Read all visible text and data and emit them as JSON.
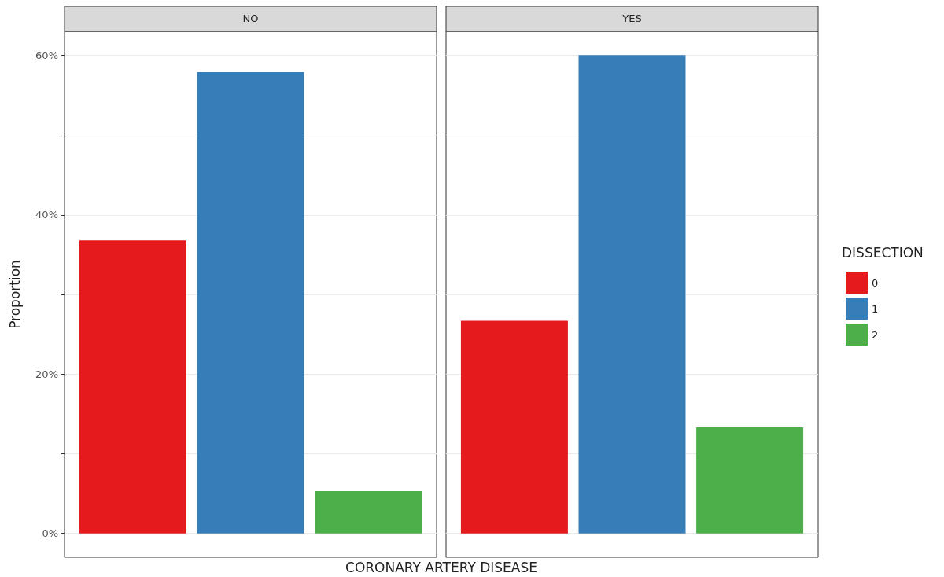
{
  "chart_data": {
    "type": "bar",
    "ylabel": "Proportion",
    "xlabel": "CORONARY ARTERY DISEASE",
    "legend_title": "DISSECTION",
    "categories": [
      "NO",
      "YES"
    ],
    "series": [
      {
        "name": "0",
        "color": "#e41a1c",
        "values": [
          36.8,
          26.7
        ]
      },
      {
        "name": "1",
        "color": "#377eb8",
        "values": [
          57.9,
          60.0
        ]
      },
      {
        "name": "2",
        "color": "#4daf4a",
        "values": [
          5.3,
          13.3
        ]
      }
    ],
    "ylim": [
      -3,
      63
    ],
    "yticks": [
      {
        "value": 0,
        "label": "0%"
      },
      {
        "value": 10,
        "label": null
      },
      {
        "value": 20,
        "label": "20%"
      },
      {
        "value": 30,
        "label": null
      },
      {
        "value": 40,
        "label": "40%"
      },
      {
        "value": 50,
        "label": null
      },
      {
        "value": 60,
        "label": "60%"
      }
    ],
    "grid": "y",
    "legend": "right"
  }
}
